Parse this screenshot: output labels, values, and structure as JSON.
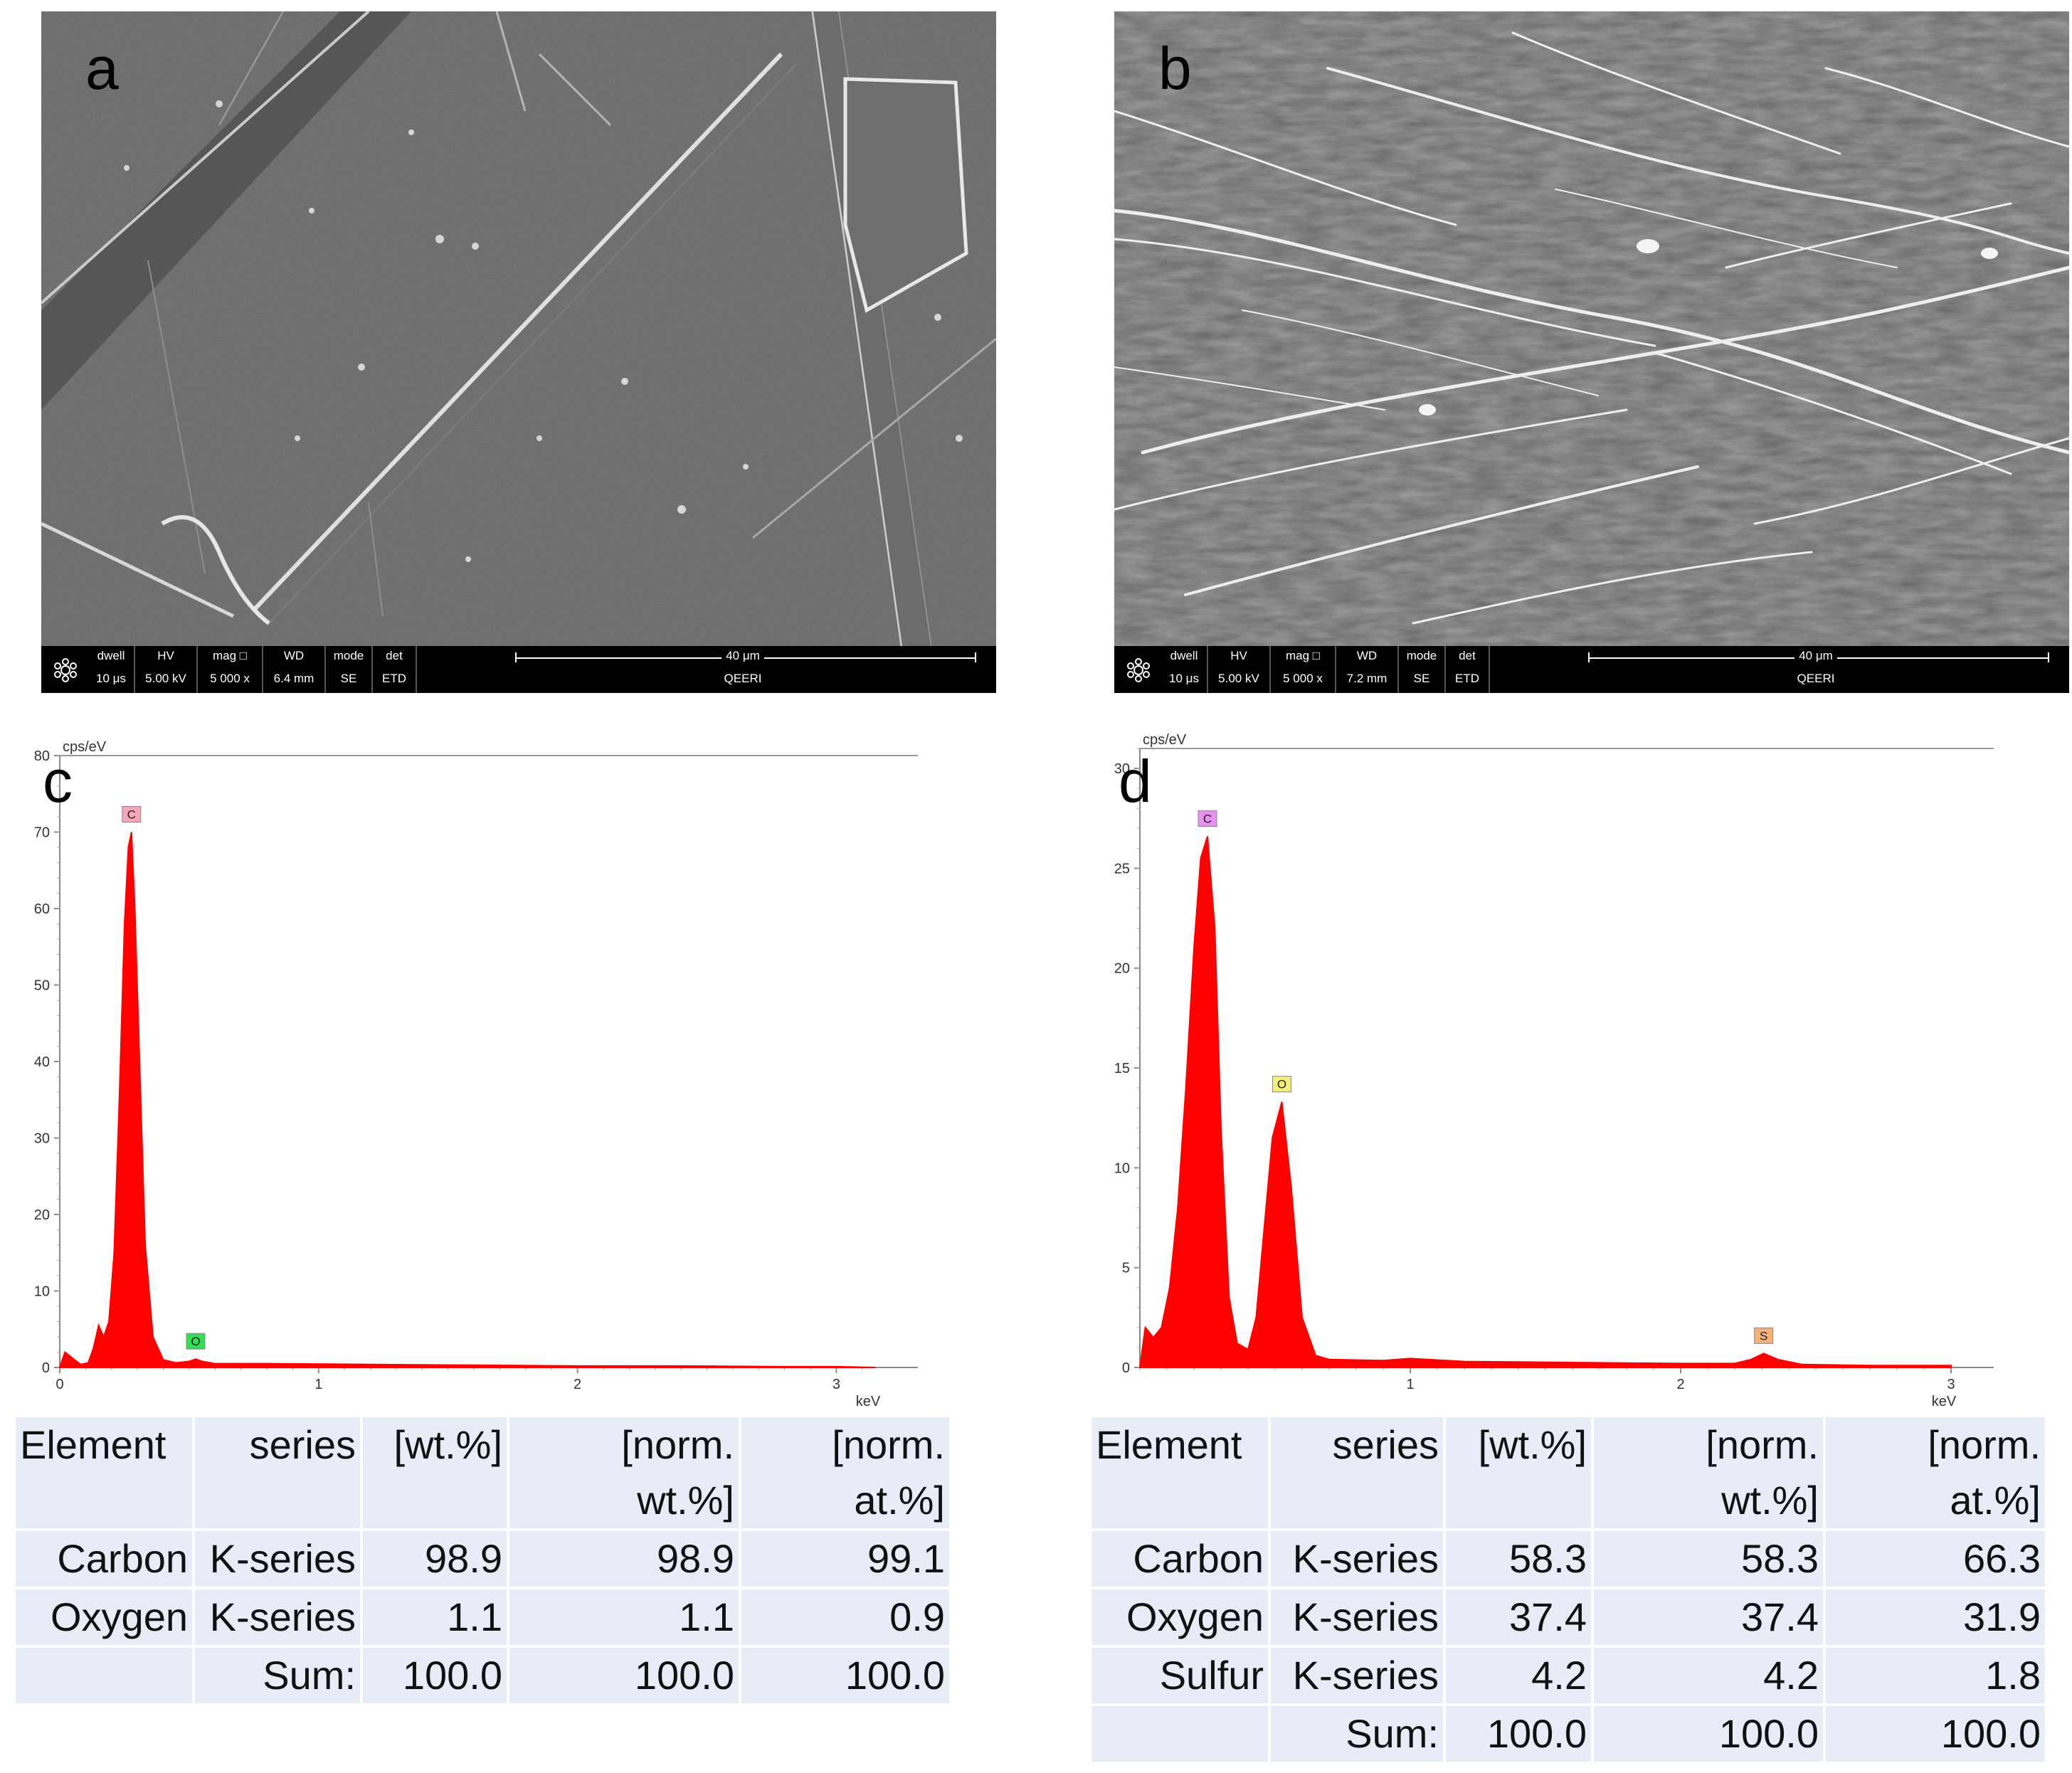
{
  "panels": {
    "a": {
      "letter": "a",
      "info": {
        "headers": [
          "dwell",
          "HV",
          "mag □",
          "WD",
          "mode",
          "det"
        ],
        "values": [
          "10 μs",
          "5.00 kV",
          "5 000 x",
          "6.4 mm",
          "SE",
          "ETD"
        ],
        "scale": "40 μm",
        "org": "QEERI"
      }
    },
    "b": {
      "letter": "b",
      "info": {
        "headers": [
          "dwell",
          "HV",
          "mag □",
          "WD",
          "mode",
          "det"
        ],
        "values": [
          "10 μs",
          "5.00 kV",
          "5 000 x",
          "7.2 mm",
          "SE",
          "ETD"
        ],
        "scale": "40 μm",
        "org": "QEERI"
      }
    }
  },
  "chart_data": [
    {
      "panel": "c",
      "type": "area",
      "ylabel": "cps/eV",
      "xlabel": "keV",
      "xlim": [
        0,
        3.15
      ],
      "ylim": [
        0,
        80
      ],
      "xticks": [
        "0",
        "1",
        "2",
        "3"
      ],
      "yticks": [
        "0",
        "10",
        "20",
        "30",
        "40",
        "50",
        "60",
        "70",
        "80"
      ],
      "color": "#ff0000",
      "x": [
        0.0,
        0.02,
        0.05,
        0.08,
        0.11,
        0.13,
        0.15,
        0.17,
        0.19,
        0.21,
        0.23,
        0.25,
        0.265,
        0.277,
        0.29,
        0.31,
        0.33,
        0.36,
        0.4,
        0.45,
        0.5,
        0.525,
        0.55,
        0.6,
        0.8,
        1.2,
        1.6,
        2.0,
        2.4,
        2.8,
        3.0,
        3.15
      ],
      "values": [
        0.0,
        2.0,
        1.2,
        0.4,
        0.6,
        2.5,
        5.5,
        4.0,
        6.0,
        15.0,
        35.0,
        58.0,
        68.0,
        70.0,
        60.0,
        38.0,
        16.0,
        4.0,
        1.0,
        0.6,
        0.8,
        1.1,
        0.8,
        0.5,
        0.5,
        0.4,
        0.3,
        0.2,
        0.2,
        0.1,
        0.1,
        0.0
      ],
      "peaks": [
        {
          "label": "C",
          "x": 0.277,
          "y": 70.0,
          "color": "#f4a7b9"
        },
        {
          "label": "O",
          "x": 0.525,
          "y": 1.1,
          "color": "#33dd55"
        }
      ],
      "table": {
        "header": [
          "Element",
          "series",
          "[wt.%]",
          "[norm.\nwt.%]",
          "[norm.\nat.%]"
        ],
        "rows": [
          [
            "Carbon",
            "K-series",
            "98.9",
            "98.9",
            "99.1"
          ],
          [
            "Oxygen",
            "K-series",
            "1.1",
            "1.1",
            "0.9"
          ]
        ],
        "sum": [
          "",
          "Sum:",
          "100.0",
          "100.0",
          "100.0"
        ]
      }
    },
    {
      "panel": "d",
      "type": "area",
      "ylabel": "cps/eV",
      "xlabel": "keV",
      "xlim": [
        0,
        3.0
      ],
      "ylim": [
        0,
        31
      ],
      "xticks": [
        "1",
        "2",
        "3"
      ],
      "yticks": [
        "0",
        "5",
        "10",
        "15",
        "20",
        "25",
        "30"
      ],
      "color": "#ff0000",
      "x": [
        0.0,
        0.02,
        0.05,
        0.08,
        0.11,
        0.14,
        0.17,
        0.2,
        0.225,
        0.25,
        0.277,
        0.3,
        0.33,
        0.36,
        0.4,
        0.43,
        0.46,
        0.49,
        0.525,
        0.56,
        0.6,
        0.65,
        0.7,
        0.9,
        1.0,
        1.2,
        1.6,
        2.0,
        2.2,
        2.26,
        2.307,
        2.36,
        2.45,
        2.7,
        3.0
      ],
      "values": [
        0.0,
        2.0,
        1.5,
        2.0,
        4.0,
        8.0,
        14.0,
        21.0,
        25.5,
        26.6,
        22.0,
        12.0,
        3.5,
        1.2,
        0.9,
        2.5,
        7.0,
        11.5,
        13.3,
        9.0,
        2.5,
        0.6,
        0.4,
        0.35,
        0.45,
        0.3,
        0.25,
        0.2,
        0.2,
        0.4,
        0.7,
        0.4,
        0.15,
        0.1,
        0.1
      ],
      "peaks": [
        {
          "label": "C",
          "x": 0.25,
          "y": 26.6,
          "color": "#e890f0"
        },
        {
          "label": "O",
          "x": 0.525,
          "y": 13.3,
          "color": "#f3f07a"
        },
        {
          "label": "S",
          "x": 2.307,
          "y": 0.7,
          "color": "#f6b07a"
        }
      ],
      "table": {
        "header": [
          "Element",
          "series",
          "[wt.%]",
          "[norm.\nwt.%]",
          "[norm.\nat.%]"
        ],
        "rows": [
          [
            "Carbon",
            "K-series",
            "58.3",
            "58.3",
            "66.3"
          ],
          [
            "Oxygen",
            "K-series",
            "37.4",
            "37.4",
            "31.9"
          ],
          [
            "Sulfur",
            "K-series",
            "4.2",
            "4.2",
            "1.8"
          ]
        ],
        "sum": [
          "",
          "Sum:",
          "100.0",
          "100.0",
          "100.0"
        ]
      }
    }
  ]
}
